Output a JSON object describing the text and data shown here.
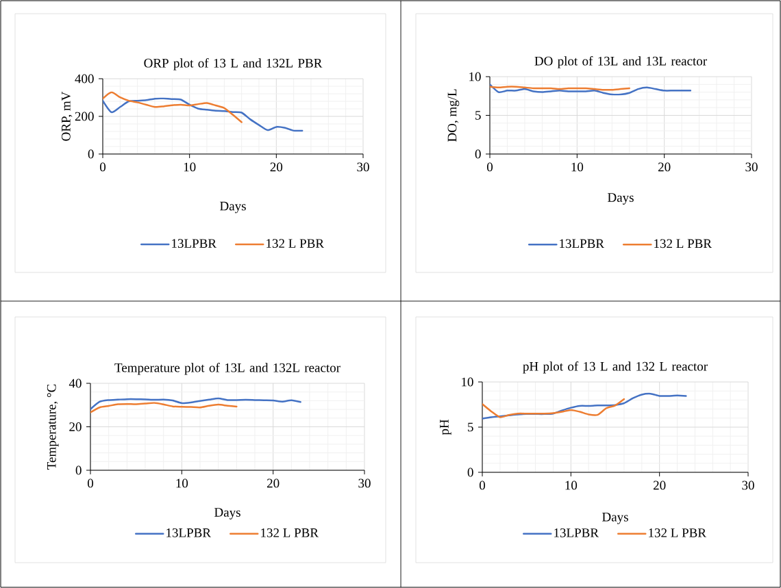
{
  "chart_data": [
    {
      "type": "line",
      "title": "ORP plot of 13 L and 132L PBR",
      "xlabel": "Days",
      "ylabel": "ORP, mV",
      "xlim": [
        0,
        30
      ],
      "xticks": [
        0,
        10,
        20,
        30
      ],
      "ylim": [
        0,
        400
      ],
      "yticks": [
        0,
        200,
        400
      ],
      "grid": true,
      "legend": "bottom",
      "series": [
        {
          "name": "13LPBR",
          "color": "#4472c4",
          "x": [
            0,
            1,
            2,
            3,
            4,
            5,
            6,
            7,
            8,
            9,
            10,
            11,
            12,
            13,
            14,
            15,
            16,
            17,
            18,
            19,
            20,
            21,
            22,
            23
          ],
          "values": [
            283,
            222,
            250,
            280,
            283,
            286,
            294,
            295,
            292,
            289,
            262,
            241,
            235,
            230,
            228,
            223,
            220,
            184,
            154,
            127,
            144,
            139,
            124,
            124
          ]
        },
        {
          "name": "132 L PBR",
          "color": "#ed7d31",
          "x": [
            0,
            1,
            2,
            3,
            4,
            5,
            6,
            7,
            8,
            9,
            10,
            11,
            12,
            13,
            14,
            15,
            16
          ],
          "values": [
            294,
            328,
            301,
            283,
            274,
            262,
            250,
            253,
            259,
            262,
            258,
            265,
            271,
            258,
            244,
            208,
            169
          ]
        }
      ]
    },
    {
      "type": "line",
      "title": "DO plot of 13L and 13L reactor",
      "xlabel": "Days",
      "ylabel": "DO, mg/L",
      "xlim": [
        0,
        30
      ],
      "xticks": [
        0,
        10,
        20,
        30
      ],
      "ylim": [
        0,
        10
      ],
      "yticks": [
        0,
        5,
        10
      ],
      "grid": true,
      "legend": "bottom",
      "series": [
        {
          "name": "13LPBR",
          "color": "#4472c4",
          "x": [
            0,
            1,
            2,
            3,
            4,
            5,
            6,
            7,
            8,
            9,
            10,
            11,
            12,
            13,
            14,
            15,
            16,
            17,
            18,
            19,
            20,
            21,
            22,
            23
          ],
          "values": [
            9.0,
            8.0,
            8.2,
            8.2,
            8.4,
            8.1,
            8.0,
            8.1,
            8.2,
            8.1,
            8.1,
            8.1,
            8.2,
            7.9,
            7.7,
            7.7,
            7.9,
            8.4,
            8.6,
            8.4,
            8.2,
            8.2,
            8.2,
            8.2
          ]
        },
        {
          "name": "132 L PBR",
          "color": "#ed7d31",
          "x": [
            0,
            1,
            2,
            3,
            4,
            5,
            6,
            7,
            8,
            9,
            10,
            11,
            12,
            13,
            14,
            15,
            16
          ],
          "values": [
            8.7,
            8.6,
            8.7,
            8.7,
            8.6,
            8.5,
            8.5,
            8.5,
            8.4,
            8.5,
            8.5,
            8.5,
            8.4,
            8.3,
            8.3,
            8.4,
            8.5
          ]
        }
      ]
    },
    {
      "type": "line",
      "title": "Temperature plot of 13L and 132L reactor",
      "xlabel": "Days",
      "ylabel": "Temperature, °C",
      "xlim": [
        0,
        30
      ],
      "xticks": [
        0,
        10,
        20,
        30
      ],
      "ylim": [
        0,
        40
      ],
      "yticks": [
        0,
        20,
        40
      ],
      "grid": true,
      "legend": "bottom",
      "series": [
        {
          "name": "13LPBR",
          "color": "#4472c4",
          "x": [
            0,
            1,
            2,
            3,
            4,
            5,
            6,
            7,
            8,
            9,
            10,
            11,
            12,
            13,
            14,
            15,
            16,
            17,
            18,
            19,
            20,
            21,
            22,
            23
          ],
          "values": [
            28.1,
            31.5,
            32.3,
            32.5,
            32.7,
            32.7,
            32.6,
            32.4,
            32.5,
            32.1,
            30.9,
            31.2,
            31.9,
            32.5,
            33.1,
            32.3,
            32.3,
            32.4,
            32.3,
            32.2,
            32.1,
            31.6,
            32.2,
            31.4
          ]
        },
        {
          "name": "132 L PBR",
          "color": "#ed7d31",
          "x": [
            0,
            1,
            2,
            3,
            4,
            5,
            6,
            7,
            8,
            9,
            10,
            11,
            12,
            13,
            14,
            15,
            16
          ],
          "values": [
            26.6,
            28.9,
            29.6,
            30.4,
            30.5,
            30.4,
            30.7,
            31.0,
            30.3,
            29.4,
            29.2,
            29.1,
            28.9,
            29.7,
            30.2,
            29.7,
            29.3
          ]
        }
      ]
    },
    {
      "type": "line",
      "title": "pH plot of 13 L and 132 L reactor",
      "xlabel": "Days",
      "ylabel": "pH",
      "xlim": [
        0,
        30
      ],
      "xticks": [
        0,
        10,
        20,
        30
      ],
      "ylim": [
        0,
        10
      ],
      "yticks": [
        0,
        5,
        10
      ],
      "grid": true,
      "legend": "bottom",
      "series": [
        {
          "name": "13LPBR",
          "color": "#4472c4",
          "x": [
            0,
            1,
            2,
            3,
            4,
            5,
            6,
            7,
            8,
            9,
            10,
            11,
            12,
            13,
            14,
            15,
            16,
            17,
            18,
            19,
            20,
            21,
            22,
            23
          ],
          "values": [
            5.95,
            6.1,
            6.2,
            6.3,
            6.4,
            6.45,
            6.45,
            6.45,
            6.5,
            6.85,
            7.15,
            7.35,
            7.35,
            7.4,
            7.4,
            7.45,
            7.65,
            8.2,
            8.6,
            8.7,
            8.45,
            8.45,
            8.5,
            8.45
          ]
        },
        {
          "name": "132 L PBR",
          "color": "#ed7d31",
          "x": [
            0,
            1,
            2,
            3,
            4,
            5,
            6,
            7,
            8,
            9,
            10,
            11,
            12,
            13,
            14,
            15,
            16
          ],
          "values": [
            7.55,
            6.75,
            6.1,
            6.35,
            6.5,
            6.5,
            6.5,
            6.5,
            6.55,
            6.7,
            6.9,
            6.7,
            6.4,
            6.35,
            7.1,
            7.4,
            8.1
          ]
        }
      ]
    }
  ]
}
